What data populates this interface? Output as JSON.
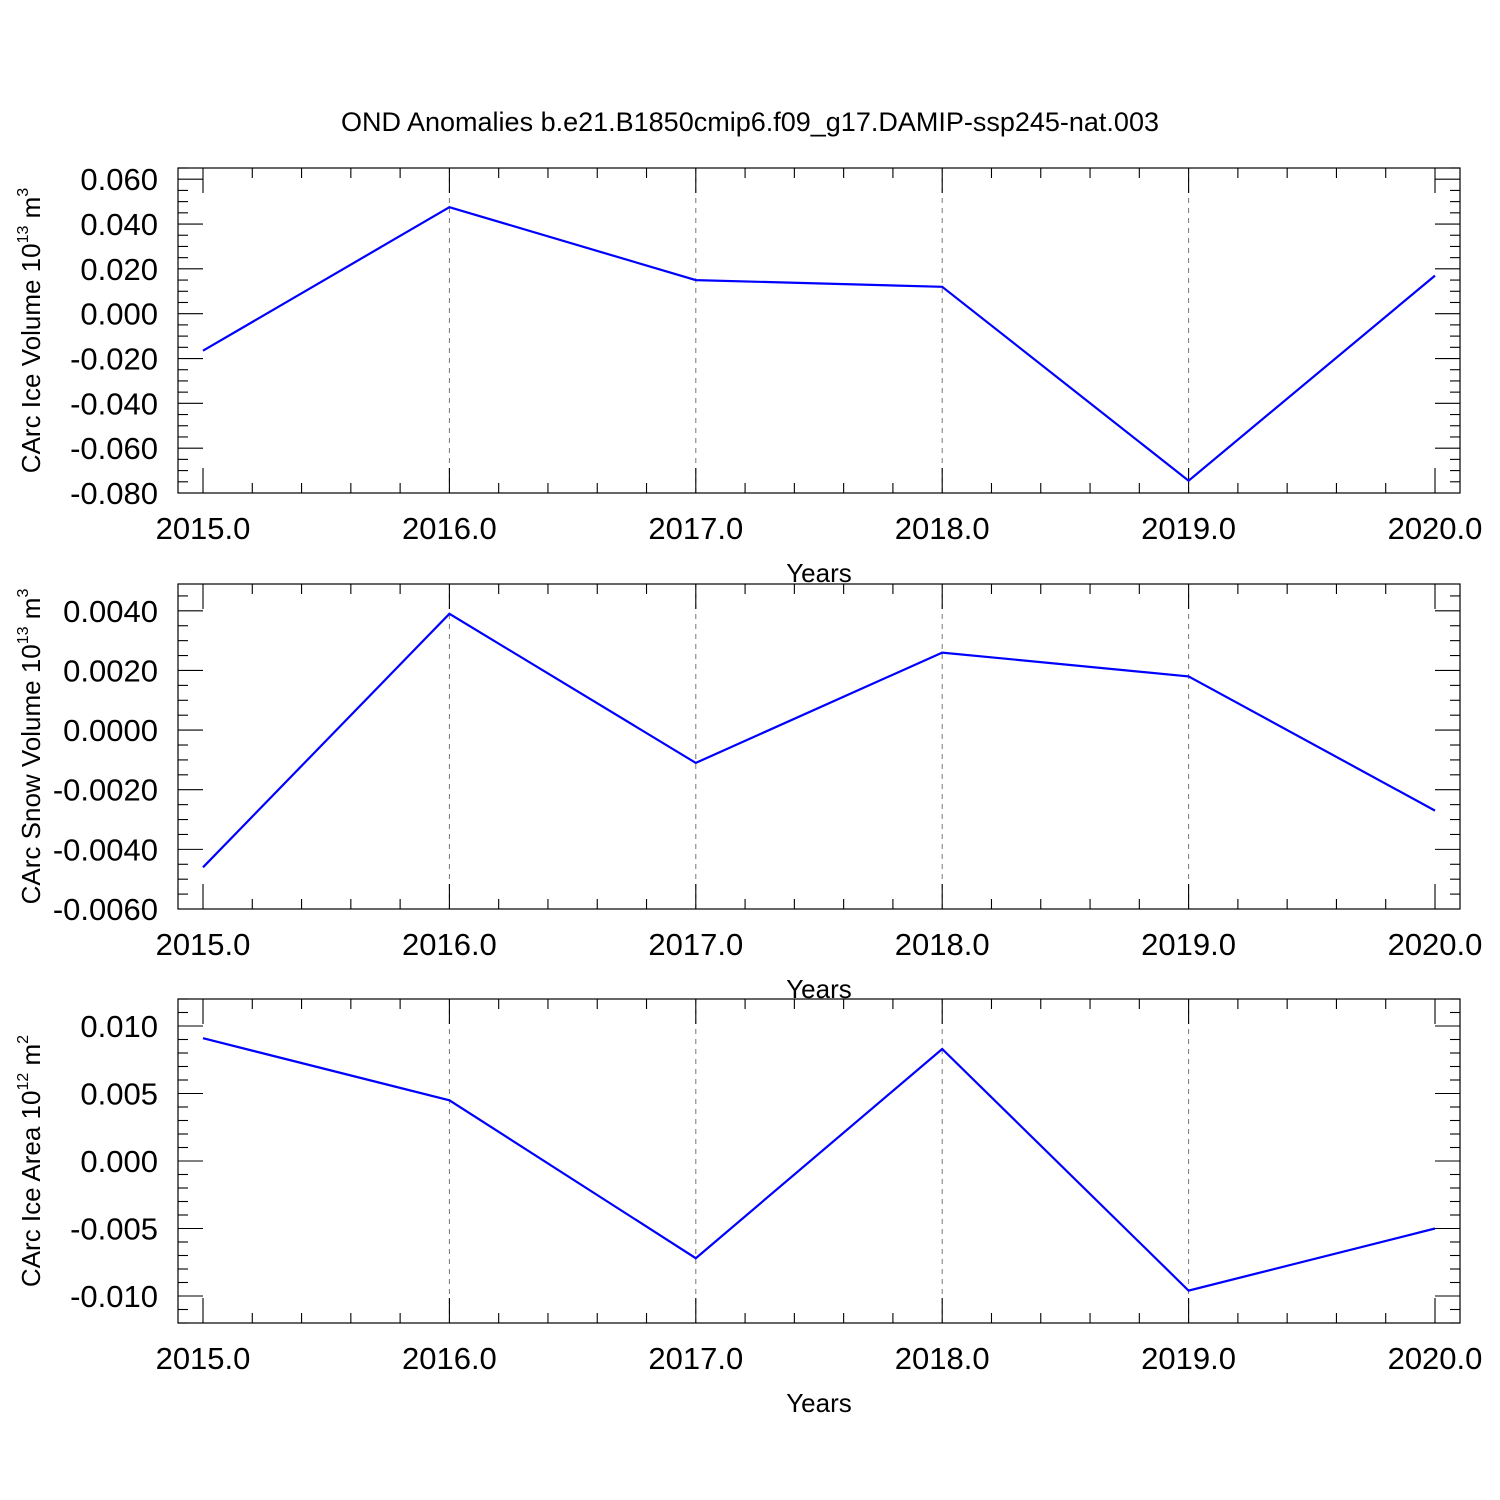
{
  "title": "OND Anomalies b.e21.B1850cmip6.f09_g17.DAMIP-ssp245-nat.003",
  "colors": {
    "series": "#0000ff",
    "grid": "#777777",
    "axis": "#000000"
  },
  "chart_data": [
    {
      "type": "line",
      "x": [
        2015,
        2016,
        2017,
        2018,
        2019,
        2020
      ],
      "xticks": [
        2015,
        2016,
        2017,
        2018,
        2019,
        2020
      ],
      "xtick_labels": [
        "2015.0",
        "2016.0",
        "2017.0",
        "2018.0",
        "2019.0",
        "2020.0"
      ],
      "xlim": [
        2015,
        2020
      ],
      "xlabel": "Years",
      "ylabel_main": "CArc Ice Volume 10",
      "ylabel_exp": "13",
      "ylabel_unit": " m",
      "ylabel_unit_exp": "3",
      "ylim": [
        -0.08,
        0.065
      ],
      "yticks": [
        -0.08,
        -0.06,
        -0.04,
        -0.02,
        0.0,
        0.02,
        0.04,
        0.06
      ],
      "ytick_labels": [
        "-0.080",
        "-0.060",
        "-0.040",
        "-0.020",
        "0.000",
        "0.020",
        "0.040",
        "0.060"
      ],
      "yminor_step": 0.005,
      "grid_x": true,
      "series": [
        {
          "values": [
            -0.0165,
            0.0475,
            0.015,
            0.012,
            -0.0745,
            0.017
          ]
        }
      ]
    },
    {
      "type": "line",
      "x": [
        2015,
        2016,
        2017,
        2018,
        2019,
        2020
      ],
      "xticks": [
        2015,
        2016,
        2017,
        2018,
        2019,
        2020
      ],
      "xtick_labels": [
        "2015.0",
        "2016.0",
        "2017.0",
        "2018.0",
        "2019.0",
        "2020.0"
      ],
      "xlim": [
        2015,
        2020
      ],
      "xlabel": "Years",
      "ylabel_main": "CArc Snow Volume 10",
      "ylabel_exp": "13",
      "ylabel_unit": " m",
      "ylabel_unit_exp": "3",
      "ylim": [
        -0.006,
        0.0049
      ],
      "yticks": [
        -0.006,
        -0.004,
        -0.002,
        0.0,
        0.002,
        0.004
      ],
      "ytick_labels": [
        "-0.0060",
        "-0.0040",
        "-0.0020",
        "0.0000",
        "0.0020",
        "0.0040"
      ],
      "yminor_step": 0.0005,
      "grid_x": true,
      "series": [
        {
          "values": [
            -0.0046,
            0.0039,
            -0.0011,
            0.0026,
            0.0018,
            -0.0027
          ]
        }
      ]
    },
    {
      "type": "line",
      "x": [
        2015,
        2016,
        2017,
        2018,
        2019,
        2020
      ],
      "xticks": [
        2015,
        2016,
        2017,
        2018,
        2019,
        2020
      ],
      "xtick_labels": [
        "2015.0",
        "2016.0",
        "2017.0",
        "2018.0",
        "2019.0",
        "2020.0"
      ],
      "xlim": [
        2015,
        2020
      ],
      "xlabel": "Years",
      "ylabel_main": "CArc Ice Area 10",
      "ylabel_exp": "12",
      "ylabel_unit": " m",
      "ylabel_unit_exp": "2",
      "ylim": [
        -0.012,
        0.012
      ],
      "yticks": [
        -0.01,
        -0.005,
        0.0,
        0.005,
        0.01
      ],
      "ytick_labels": [
        "-0.010",
        "-0.005",
        "0.000",
        "0.005",
        "0.010"
      ],
      "yminor_step": 0.001,
      "grid_x": true,
      "series": [
        {
          "values": [
            0.0091,
            0.0045,
            -0.0072,
            0.0083,
            -0.0096,
            -0.005
          ]
        }
      ]
    }
  ]
}
